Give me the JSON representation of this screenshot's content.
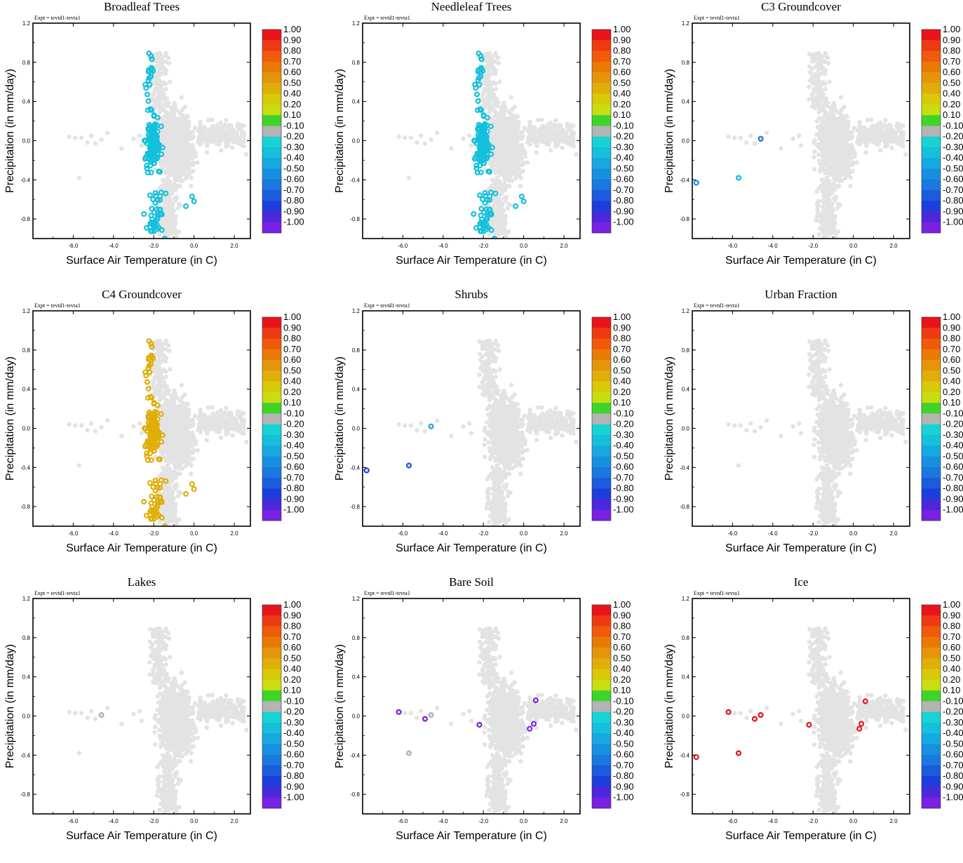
{
  "figure": {
    "expt_label": "Expt = tevtd1-tevta1",
    "xlabel": "Surface Air Temperature (in C)",
    "ylabel": "Precipitation (in mm/day)"
  },
  "colorbar": {
    "levels": [
      "1.00",
      "0.90",
      "0.80",
      "0.70",
      "0.60",
      "0.50",
      "0.40",
      "0.20",
      "0.10",
      "-0.10",
      "-0.20",
      "-0.30",
      "-0.40",
      "-0.50",
      "-0.60",
      "-0.70",
      "-0.80",
      "-0.90",
      "-1.00"
    ],
    "colors": [
      "#e8141c",
      "#ee3a12",
      "#f05a0a",
      "#e97a06",
      "#e4950a",
      "#e0ae08",
      "#dac80a",
      "#c9dd10",
      "#3fd429",
      "#b4b4b4",
      "#19d2d4",
      "#14c0dc",
      "#18a8e0",
      "#1890e0",
      "#1a78de",
      "#1b5cdc",
      "#1d3edc",
      "#4c28dc",
      "#7a20e2"
    ],
    "background_point_color": "#e3e3e3"
  },
  "chart_data": [
    {
      "type": "scatter",
      "title": "Broadleaf Trees",
      "xlabel": "Surface Air Temperature (in C)",
      "ylabel": "Precipitation (in mm/day)",
      "xlim": [
        -8.0,
        2.8
      ],
      "ylim": [
        -1.0,
        1.2
      ],
      "xticks": [
        "-6.0",
        "-4.0",
        "-2.0",
        "0.0",
        "2.0"
      ],
      "yticks": [
        "1.2",
        "0.8",
        "0.4",
        "0.0",
        "-0.4",
        "-0.8"
      ],
      "colored_series": [
        {
          "name": "-0.20 to -0.30",
          "color": "#14c0dc",
          "region": "main_cluster_west"
        }
      ]
    },
    {
      "type": "scatter",
      "title": "Needleleaf Trees",
      "xlabel": "Surface Air Temperature (in C)",
      "ylabel": "Precipitation (in mm/day)",
      "xlim": [
        -8.0,
        2.8
      ],
      "ylim": [
        -1.0,
        1.2
      ],
      "xticks": [
        "-6.0",
        "-4.0",
        "-2.0",
        "0.0",
        "2.0"
      ],
      "yticks": [
        "1.2",
        "0.8",
        "0.4",
        "0.0",
        "-0.4",
        "-0.8"
      ],
      "colored_series": [
        {
          "name": "-0.20 to -0.30",
          "color": "#14c0dc",
          "region": "main_cluster_west"
        }
      ]
    },
    {
      "type": "scatter",
      "title": "C3 Groundcover",
      "xlabel": "Surface Air Temperature (in C)",
      "ylabel": "Precipitation (in mm/day)",
      "xlim": [
        -8.0,
        2.8
      ],
      "ylim": [
        -1.0,
        1.2
      ],
      "xticks": [
        "-6.0",
        "-4.0",
        "-2.0",
        "0.0",
        "2.0"
      ],
      "yticks": [
        "1.2",
        "0.8",
        "0.4",
        "0.0",
        "-0.4",
        "-0.8"
      ],
      "colored_points": [
        {
          "x": -4.6,
          "y": 0.02,
          "color": "#1a78de"
        },
        {
          "x": -5.7,
          "y": -0.38,
          "color": "#14c0dc"
        },
        {
          "x": -7.8,
          "y": -0.43,
          "color": "#1890e0"
        }
      ]
    },
    {
      "type": "scatter",
      "title": "C4 Groundcover",
      "xlabel": "Surface Air Temperature (in C)",
      "ylabel": "Precipitation (in mm/day)",
      "xlim": [
        -8.0,
        2.8
      ],
      "ylim": [
        -1.0,
        1.2
      ],
      "xticks": [
        "-6.0",
        "-4.0",
        "-2.0",
        "0.0",
        "2.0"
      ],
      "yticks": [
        "1.2",
        "0.8",
        "0.4",
        "0.0",
        "-0.4",
        "-0.8"
      ],
      "colored_series": [
        {
          "name": "0.50",
          "color": "#e0ae08",
          "region": "main_cluster_west"
        }
      ]
    },
    {
      "type": "scatter",
      "title": "Shrubs",
      "xlabel": "Surface Air Temperature (in C)",
      "ylabel": "Precipitation (in mm/day)",
      "xlim": [
        -8.0,
        2.8
      ],
      "ylim": [
        -1.0,
        1.2
      ],
      "xticks": [
        "-6.0",
        "-4.0",
        "-2.0",
        "0.0",
        "2.0"
      ],
      "yticks": [
        "1.2",
        "0.8",
        "0.4",
        "0.0",
        "-0.4",
        "-0.8"
      ],
      "colored_points": [
        {
          "x": -4.6,
          "y": 0.02,
          "color": "#18a8e0"
        },
        {
          "x": -5.7,
          "y": -0.38,
          "color": "#1b5cdc"
        },
        {
          "x": -7.8,
          "y": -0.43,
          "color": "#1d3edc"
        }
      ]
    },
    {
      "type": "scatter",
      "title": "Urban Fraction",
      "xlabel": "Surface Air Temperature (in C)",
      "ylabel": "Precipitation (in mm/day)",
      "xlim": [
        -8.0,
        2.8
      ],
      "ylim": [
        -1.0,
        1.2
      ],
      "xticks": [
        "-6.0",
        "-4.0",
        "-2.0",
        "0.0",
        "2.0"
      ],
      "yticks": [
        "1.2",
        "0.8",
        "0.4",
        "0.0",
        "-0.4",
        "-0.8"
      ],
      "colored_points": []
    },
    {
      "type": "scatter",
      "title": "Lakes",
      "xlabel": "Surface Air Temperature (in C)",
      "ylabel": "Precipitation (in mm/day)",
      "xlim": [
        -8.0,
        2.8
      ],
      "ylim": [
        -1.0,
        1.2
      ],
      "xticks": [
        "-6.0",
        "-4.0",
        "-2.0",
        "0.0",
        "2.0"
      ],
      "yticks": [
        "1.2",
        "0.8",
        "0.4",
        "0.0",
        "-0.4",
        "-0.8"
      ],
      "colored_points": [
        {
          "x": -4.6,
          "y": 0.01,
          "color": "#b4b4b4"
        }
      ]
    },
    {
      "type": "scatter",
      "title": "Bare Soil",
      "xlabel": "Surface Air Temperature (in C)",
      "ylabel": "Precipitation (in mm/day)",
      "xlim": [
        -8.0,
        2.8
      ],
      "ylim": [
        -1.0,
        1.2
      ],
      "xticks": [
        "-6.0",
        "-4.0",
        "-2.0",
        "0.0",
        "2.0"
      ],
      "yticks": [
        "1.2",
        "0.8",
        "0.4",
        "0.0",
        "-0.4",
        "-0.8"
      ],
      "colored_points": [
        {
          "x": -6.2,
          "y": 0.04,
          "color": "#7a20e2"
        },
        {
          "x": -4.9,
          "y": -0.03,
          "color": "#7a20e2"
        },
        {
          "x": -4.6,
          "y": 0.01,
          "color": "#b4b4b4"
        },
        {
          "x": -5.7,
          "y": -0.38,
          "color": "#b4b4b4"
        },
        {
          "x": -2.2,
          "y": -0.09,
          "color": "#7a20e2"
        },
        {
          "x": 0.6,
          "y": 0.16,
          "color": "#7a20e2"
        },
        {
          "x": 0.5,
          "y": -0.08,
          "color": "#7a20e2"
        },
        {
          "x": 0.3,
          "y": -0.13,
          "color": "#7a20e2"
        }
      ]
    },
    {
      "type": "scatter",
      "title": "Ice",
      "xlabel": "Surface Air Temperature (in C)",
      "ylabel": "Precipitation (in mm/day)",
      "xlim": [
        -8.0,
        2.8
      ],
      "ylim": [
        -1.0,
        1.2
      ],
      "xticks": [
        "-6.0",
        "-4.0",
        "-2.0",
        "0.0",
        "2.0"
      ],
      "yticks": [
        "1.2",
        "0.8",
        "0.4",
        "0.0",
        "-0.4",
        "-0.8"
      ],
      "colored_points": [
        {
          "x": -6.2,
          "y": 0.04,
          "color": "#e8141c"
        },
        {
          "x": -4.9,
          "y": -0.03,
          "color": "#e8141c"
        },
        {
          "x": -4.6,
          "y": 0.01,
          "color": "#e8141c"
        },
        {
          "x": -5.7,
          "y": -0.38,
          "color": "#e8141c"
        },
        {
          "x": -7.8,
          "y": -0.42,
          "color": "#e8141c"
        },
        {
          "x": -2.2,
          "y": -0.09,
          "color": "#e8141c"
        },
        {
          "x": 0.6,
          "y": 0.15,
          "color": "#e8141c"
        },
        {
          "x": 0.4,
          "y": -0.08,
          "color": "#e8141c"
        },
        {
          "x": 0.3,
          "y": -0.13,
          "color": "#e8141c"
        }
      ]
    }
  ]
}
